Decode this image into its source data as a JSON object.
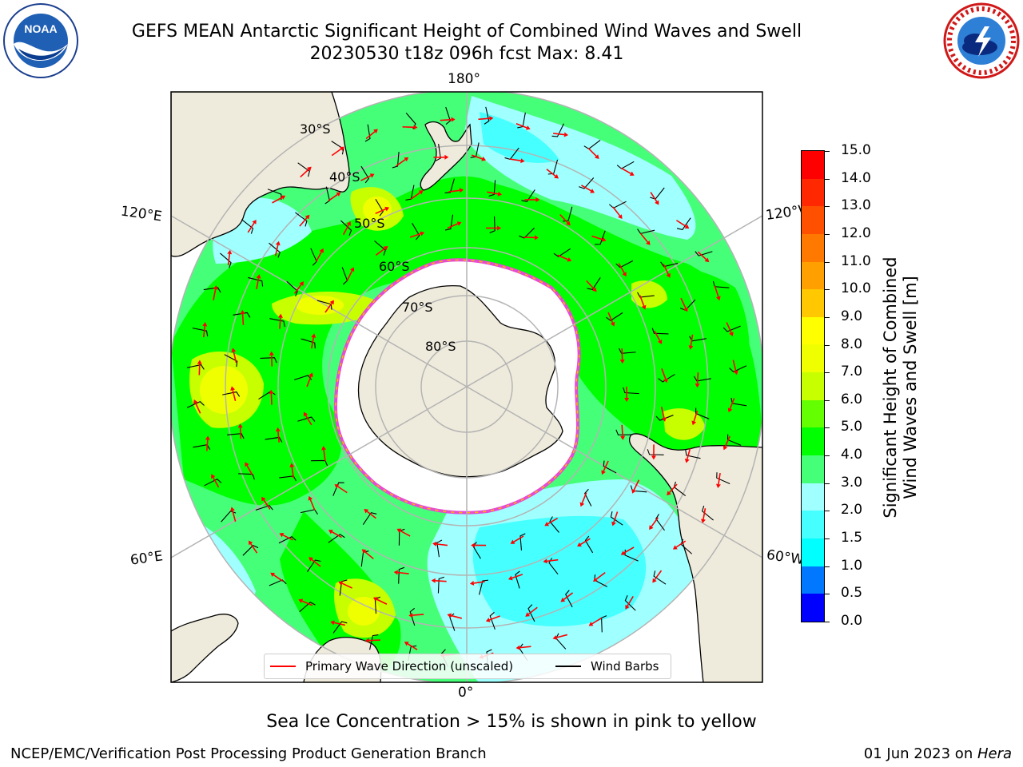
{
  "header": {
    "title_line1": "GEFS MEAN Antarctic Significant Height of Combined Wind Waves and Swell",
    "title_line2": "20230530 t18z 096h fcst   Max: 8.41"
  },
  "logos": {
    "left": "NOAA",
    "right": "NATIONAL WEATHER SERVICE"
  },
  "map": {
    "projection": "south-polar-stereographic",
    "longitude_labels": {
      "top": "180°",
      "bottom": "0°",
      "upper_left": "120°E",
      "upper_right": "120°W",
      "lower_left": "60°E",
      "lower_right": "60°W"
    },
    "latitude_labels": [
      "30°S",
      "40°S",
      "50°S",
      "60°S",
      "70°S",
      "80°S"
    ],
    "colors": {
      "land": "#efebdc",
      "sea_ice": "#ffffff",
      "grid": "#b4b4b4",
      "coast": "#000000",
      "ice_edge": "#e64bd2",
      "wave_arrow": "#ff0000",
      "wind_barb": "#000000"
    }
  },
  "colorbar": {
    "label_line1": "Significant Height of Combined",
    "label_line2": "Wind Waves and Swell [m]",
    "ticks": [
      "0.0",
      "0.5",
      "1.0",
      "1.5",
      "2.0",
      "3.0",
      "4.0",
      "5.0",
      "6.0",
      "7.0",
      "8.0",
      "9.0",
      "10.0",
      "11.0",
      "12.0",
      "13.0",
      "14.0",
      "15.0"
    ],
    "colors": [
      "#0000ff",
      "#0078ff",
      "#00ffff",
      "#46ffff",
      "#a0ffff",
      "#46ff78",
      "#00ff00",
      "#64ff00",
      "#c8ff00",
      "#f0ff00",
      "#ffff00",
      "#ffc800",
      "#ffa000",
      "#ff7800",
      "#ff5000",
      "#ff2800",
      "#ff0000"
    ]
  },
  "legend": {
    "wave_label": "Primary Wave Direction (unscaled)",
    "barb_label": "Wind Barbs"
  },
  "caption": "Sea Ice Concentration > 15% is shown in pink to yellow",
  "footer": {
    "left": "NCEP/EMC/Verification Post Processing Product Generation Branch",
    "date": "01 Jun 2023 on ",
    "machine": "Hera"
  }
}
